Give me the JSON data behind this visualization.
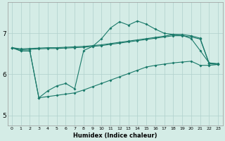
{
  "xlabel": "Humidex (Indice chaleur)",
  "background_color": "#d4ece6",
  "grid_color": "#b0d0cc",
  "line_color": "#1a7a6a",
  "xlim": [
    -0.5,
    23.5
  ],
  "ylim": [
    4.75,
    7.75
  ],
  "yticks": [
    5,
    6,
    7
  ],
  "xticks": [
    0,
    1,
    2,
    3,
    4,
    5,
    6,
    7,
    8,
    9,
    10,
    11,
    12,
    13,
    14,
    15,
    16,
    17,
    18,
    19,
    20,
    21,
    22,
    23
  ],
  "series": {
    "main": [
      6.65,
      6.57,
      6.57,
      5.43,
      5.6,
      5.72,
      5.78,
      5.65,
      6.58,
      6.68,
      6.87,
      7.13,
      7.28,
      7.2,
      7.3,
      7.22,
      7.1,
      7.0,
      6.97,
      6.95,
      6.87,
      6.58,
      6.28,
      6.26
    ],
    "upper1": [
      6.65,
      6.62,
      6.63,
      6.64,
      6.65,
      6.65,
      6.66,
      6.67,
      6.68,
      6.7,
      6.72,
      6.75,
      6.78,
      6.81,
      6.84,
      6.87,
      6.9,
      6.93,
      6.97,
      6.97,
      6.94,
      6.88,
      6.27,
      6.25
    ],
    "upper2": [
      6.65,
      6.6,
      6.61,
      6.62,
      6.63,
      6.63,
      6.64,
      6.65,
      6.66,
      6.68,
      6.7,
      6.73,
      6.76,
      6.79,
      6.82,
      6.85,
      6.88,
      6.91,
      6.94,
      6.94,
      6.91,
      6.86,
      6.26,
      6.24
    ],
    "lower": [
      6.65,
      6.57,
      6.57,
      5.43,
      5.46,
      5.49,
      5.52,
      5.55,
      5.62,
      5.7,
      5.78,
      5.86,
      5.94,
      6.02,
      6.1,
      6.18,
      6.22,
      6.25,
      6.28,
      6.3,
      6.32,
      6.22,
      6.22,
      6.24
    ]
  },
  "markersize": 2.0,
  "linewidth": 0.8
}
